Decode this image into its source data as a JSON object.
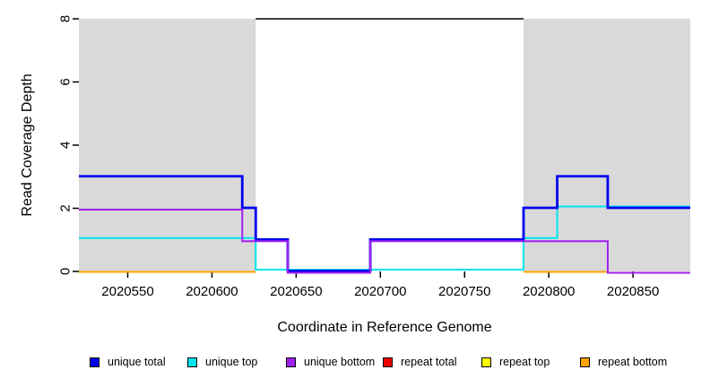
{
  "chart_data": {
    "type": "line",
    "subtype": "step",
    "title": "",
    "xlabel": "Coordinate in Reference Genome",
    "ylabel": "Read Coverage Depth",
    "xlim": [
      2020521,
      2020884
    ],
    "ylim": [
      0,
      8
    ],
    "xticks": [
      2020550,
      2020600,
      2020650,
      2020700,
      2020750,
      2020800,
      2020850
    ],
    "yticks": [
      0,
      2,
      4,
      6,
      8
    ],
    "grid": false,
    "legend_position": "bottom",
    "background_color": "#FFFFFF",
    "shaded_region_color": "#D9D9D9",
    "shaded_regions": [
      {
        "name": "repeat-region-left",
        "x0": 2020521,
        "x1": 2020626
      },
      {
        "name": "repeat-region-right",
        "x0": 2020785,
        "x1": 2020884
      }
    ],
    "annotation_line": {
      "y": 8,
      "x0": 2020626,
      "x1": 2020785,
      "color": "#000000"
    },
    "series": [
      {
        "name": "unique total",
        "color": "#0000EE",
        "segments": [
          [
            [
              2020521,
              3
            ],
            [
              2020618,
              3
            ],
            [
              2020618,
              2
            ],
            [
              2020626,
              2
            ],
            [
              2020626,
              1
            ],
            [
              2020645,
              1
            ],
            [
              2020645,
              0
            ],
            [
              2020694,
              0
            ],
            [
              2020694,
              1
            ],
            [
              2020785,
              1
            ],
            [
              2020785,
              2
            ],
            [
              2020805,
              2
            ],
            [
              2020805,
              3
            ],
            [
              2020835,
              3
            ],
            [
              2020835,
              2
            ],
            [
              2020884,
              2
            ]
          ]
        ]
      },
      {
        "name": "unique top",
        "color": "#00E5EE",
        "segments": [
          [
            [
              2020521,
              1
            ],
            [
              2020626,
              1
            ],
            [
              2020626,
              0
            ],
            [
              2020785,
              0
            ],
            [
              2020785,
              1
            ],
            [
              2020805,
              1
            ],
            [
              2020805,
              2
            ],
            [
              2020884,
              2
            ]
          ]
        ]
      },
      {
        "name": "unique bottom",
        "color": "#A020F0",
        "segments": [
          [
            [
              2020521,
              2
            ],
            [
              2020618,
              2
            ],
            [
              2020618,
              1
            ],
            [
              2020645,
              1
            ],
            [
              2020645,
              0
            ],
            [
              2020694,
              0
            ],
            [
              2020694,
              1
            ],
            [
              2020835,
              1
            ],
            [
              2020835,
              0
            ],
            [
              2020884,
              0
            ]
          ]
        ]
      },
      {
        "name": "repeat total",
        "color": "#EE0000",
        "segments": []
      },
      {
        "name": "repeat top",
        "color": "#FFFF00",
        "segments": []
      },
      {
        "name": "repeat bottom",
        "color": "#FFA500",
        "segments": [
          [
            [
              2020521,
              0
            ],
            [
              2020626,
              0
            ]
          ],
          [
            [
              2020785,
              0
            ],
            [
              2020835,
              0
            ]
          ]
        ]
      }
    ]
  },
  "legend": {
    "items": [
      {
        "label": "unique total",
        "color": "#0000EE"
      },
      {
        "label": "unique top",
        "color": "#00E5EE"
      },
      {
        "label": "unique bottom",
        "color": "#A020F0"
      },
      {
        "label": "repeat total",
        "color": "#EE0000"
      },
      {
        "label": "repeat top",
        "color": "#FFFF00"
      },
      {
        "label": "repeat bottom",
        "color": "#FFA500"
      }
    ]
  }
}
